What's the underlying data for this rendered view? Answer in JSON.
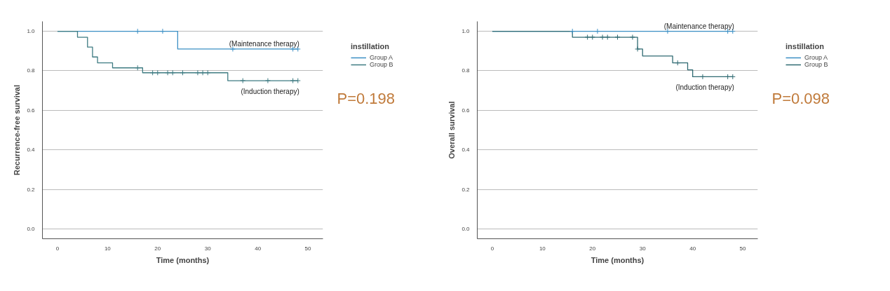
{
  "chart_data": [
    {
      "type": "step",
      "xlabel": "Time (months)",
      "ylabel": "Recurrence-free survival",
      "legend_title": "instillation",
      "xlim": [
        -3,
        53
      ],
      "ylim": [
        -0.05,
        1.05
      ],
      "xticks": [
        0,
        10,
        20,
        30,
        40,
        50
      ],
      "yticks": [
        {
          "value": 0,
          "label": "0.0"
        },
        {
          "value": 0.2,
          "label": "0.2"
        },
        {
          "value": 0.4,
          "label": "0.4"
        },
        {
          "value": 0.6,
          "label": "0.6"
        },
        {
          "value": 0.8,
          "label": "0.8"
        },
        {
          "value": 1,
          "label": "1.0"
        }
      ],
      "grid": "y",
      "legend": "top right",
      "line_style": "solid",
      "series": [
        {
          "name": "Group A",
          "color": "#3b8fc4",
          "x": [
            0,
            24,
            48
          ],
          "values": [
            1,
            0.91,
            0.91
          ]
        },
        {
          "name": "Group B",
          "color": "#3e7b82",
          "x": [
            0,
            4,
            6,
            7,
            8,
            11,
            17,
            34,
            48
          ],
          "values": [
            1,
            0.97,
            0.92,
            0.87,
            0.84,
            0.815,
            0.79,
            0.75,
            0.75
          ]
        },
        {
          "type": "scatter",
          "marker": "cross",
          "color": "#3b8fc4",
          "x": [
            16,
            21,
            35,
            47,
            48
          ],
          "values": [
            1,
            1,
            0.91,
            0.91,
            0.91
          ]
        },
        {
          "type": "scatter",
          "marker": "cross",
          "color": "#3e7b82",
          "x": [
            16,
            19,
            20,
            22,
            23,
            25,
            28,
            29,
            30,
            37,
            42,
            47,
            48
          ],
          "values": [
            0.815,
            0.79,
            0.79,
            0.79,
            0.79,
            0.79,
            0.79,
            0.79,
            0.79,
            0.75,
            0.75,
            0.75,
            0.75
          ]
        }
      ],
      "annotations": [
        "(Maintenance therapy)",
        "(Induction therapy)",
        "P=0.198"
      ]
    },
    {
      "type": "step",
      "xlabel": "Time (months)",
      "ylabel": "Overall survival",
      "legend_title": "instillation",
      "xlim": [
        -3,
        53
      ],
      "ylim": [
        -0.05,
        1.05
      ],
      "xticks": [
        0,
        10,
        20,
        30,
        40,
        50
      ],
      "yticks": [
        {
          "value": 0,
          "label": "0.0"
        },
        {
          "value": 0.2,
          "label": "0.2"
        },
        {
          "value": 0.4,
          "label": "0.4"
        },
        {
          "value": 0.6,
          "label": "0.6"
        },
        {
          "value": 0.8,
          "label": "0.8"
        },
        {
          "value": 1,
          "label": "1.0"
        }
      ],
      "grid": "y",
      "legend": "top right",
      "line_style": "solid",
      "series": [
        {
          "name": "Group A",
          "color": "#3b8fc4",
          "x": [
            0,
            48
          ],
          "values": [
            1,
            1
          ]
        },
        {
          "name": "Group B",
          "color": "#2f6a72",
          "x": [
            0,
            16,
            29,
            30,
            36,
            39,
            40,
            48
          ],
          "values": [
            1,
            0.97,
            0.91,
            0.875,
            0.84,
            0.805,
            0.77,
            0.77
          ]
        },
        {
          "type": "scatter",
          "marker": "cross",
          "color": "#3b8fc4",
          "x": [
            16,
            21,
            35,
            47,
            48
          ],
          "values": [
            1,
            1,
            1,
            1,
            1
          ]
        },
        {
          "type": "scatter",
          "marker": "cross",
          "color": "#2f6a72",
          "x": [
            19,
            20,
            22,
            23,
            25,
            28,
            29,
            37,
            42,
            47,
            48
          ],
          "values": [
            0.97,
            0.97,
            0.97,
            0.97,
            0.97,
            0.97,
            0.91,
            0.84,
            0.77,
            0.77,
            0.77
          ]
        }
      ],
      "annotations": [
        "(Maintenance therapy)",
        "(Induction therapy)",
        "P=0.098"
      ]
    }
  ]
}
